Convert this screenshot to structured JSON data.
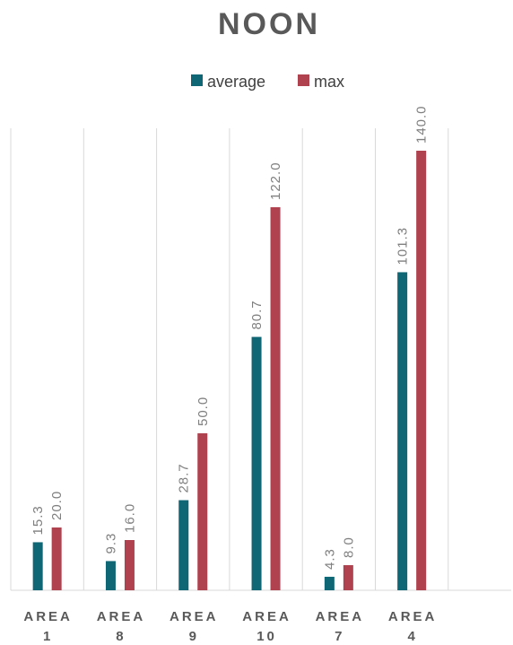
{
  "chart_data": {
    "type": "bar",
    "title": "NOON",
    "categories": [
      [
        "AREA",
        "1"
      ],
      [
        "AREA",
        "8"
      ],
      [
        "AREA",
        "9"
      ],
      [
        "AREA",
        "10"
      ],
      [
        "AREA",
        "7"
      ],
      [
        "AREA",
        "4"
      ]
    ],
    "series": [
      {
        "name": "average",
        "color": "#0f6674",
        "values": [
          15.3,
          9.3,
          28.7,
          80.7,
          4.3,
          101.3
        ]
      },
      {
        "name": "max",
        "color": "#b0414e",
        "values": [
          20.0,
          16.0,
          50.0,
          122.0,
          8.0,
          140.0
        ]
      }
    ],
    "value_format_decimals": 1,
    "ylim": [
      0,
      160
    ],
    "legend_position": "top",
    "grid": "vertical-category-separators",
    "xlabel": "",
    "ylabel": ""
  }
}
